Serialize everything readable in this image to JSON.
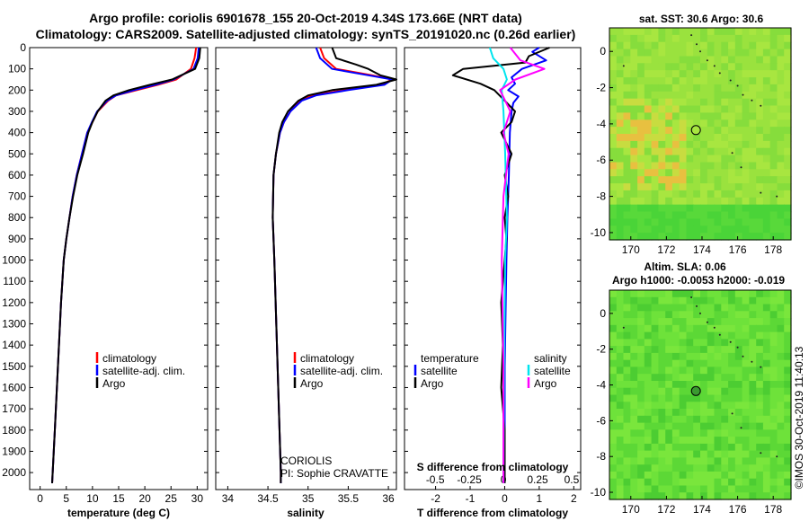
{
  "titles": {
    "line1": "Argo profile: coriolis 6901678_155 20-Oct-2019 4.34S 173.66E (NRT data)",
    "line2": "Climatology: CARS2009. Satellite-adjusted climatology: synTS_20191020.nc (0.26d earlier)"
  },
  "colors": {
    "climatology": "#ff0000",
    "satellite": "#0000ff",
    "argo": "#000000",
    "sat_salinity": "#00e5ee",
    "argo_salinity": "#ff00ff"
  },
  "depth_ticks": [
    "0",
    "100",
    "200",
    "300",
    "400",
    "500",
    "600",
    "700",
    "800",
    "900",
    "1000",
    "1100",
    "1200",
    "1300",
    "1400",
    "1500",
    "1600",
    "1700",
    "1800",
    "1900",
    "2000"
  ],
  "legends": {
    "climatology": "climatology",
    "satellite_adj": "satellite-adj. clim.",
    "argo": "Argo",
    "temperature": "temperature",
    "salinity": "salinity",
    "satellite": "satellite"
  },
  "annotations": {
    "agency": "CORIOLIS",
    "pi": "PI: Sophie CRAVATTE"
  },
  "maps": {
    "sst_title": "sat. SST: 30.6 Argo: 30.6",
    "sla_title1": "Altim. SLA: 0.06",
    "sla_title2": "Argo h1000: -0.0053 h2000: -0.019",
    "x_ticks": [
      "170",
      "172",
      "174",
      "176",
      "178"
    ],
    "y_ticks": [
      "0",
      "-2",
      "-4",
      "-6",
      "-8",
      "-10"
    ],
    "marker": {
      "lon": 173.66,
      "lat": -4.34
    }
  },
  "credit": "©IMOS 30-Oct-2019 11:40:13",
  "chart_data": [
    {
      "type": "line",
      "title": "",
      "xlabel": "temperature (deg C)",
      "ylabel": "depth",
      "xlim": [
        -2,
        32
      ],
      "ylim": [
        2080,
        0
      ],
      "x_ticks": [
        "0",
        "5",
        "10",
        "15",
        "20",
        "25",
        "30"
      ],
      "series": [
        {
          "name": "climatology",
          "color": "#ff0000",
          "depth": [
            0,
            50,
            100,
            150,
            175,
            200,
            225,
            250,
            300,
            350,
            400,
            500,
            600,
            700,
            800,
            900,
            1000,
            1200,
            1400,
            1600,
            1800,
            2000,
            2050
          ],
          "values": [
            29.8,
            29.5,
            28.8,
            26.0,
            22.5,
            18.5,
            14.5,
            13.0,
            11.0,
            10.0,
            9.0,
            8.0,
            7.0,
            6.2,
            5.6,
            5.0,
            4.5,
            4.0,
            3.6,
            3.2,
            2.8,
            2.4,
            2.3
          ]
        },
        {
          "name": "satellite-adj. clim.",
          "color": "#0000ff",
          "depth": [
            0,
            50,
            100,
            150,
            175,
            200,
            225,
            250,
            300,
            350,
            400,
            500,
            600,
            700,
            800,
            900,
            1000,
            1200,
            1400,
            1600,
            1800,
            2000,
            2050
          ],
          "values": [
            30.3,
            30.1,
            29.3,
            25.5,
            22.0,
            18.0,
            14.5,
            12.8,
            10.9,
            9.9,
            9.0,
            8.0,
            7.0,
            6.2,
            5.6,
            5.0,
            4.5,
            4.0,
            3.6,
            3.2,
            2.8,
            2.4,
            2.3
          ]
        },
        {
          "name": "Argo",
          "color": "#000000",
          "depth": [
            0,
            50,
            100,
            150,
            175,
            200,
            225,
            250,
            300,
            350,
            400,
            500,
            600,
            700,
            800,
            900,
            1000,
            1200,
            1400,
            1600,
            1800,
            2000,
            2050
          ],
          "values": [
            30.6,
            30.4,
            29.6,
            25.2,
            21.0,
            17.0,
            14.0,
            12.5,
            11.0,
            10.0,
            9.2,
            8.2,
            7.1,
            6.3,
            5.6,
            5.0,
            4.5,
            4.0,
            3.6,
            3.2,
            2.8,
            2.4,
            2.3
          ]
        }
      ]
    },
    {
      "type": "line",
      "title": "",
      "xlabel": "salinity",
      "ylabel": "depth",
      "xlim": [
        33.85,
        36.1
      ],
      "ylim": [
        2080,
        0
      ],
      "x_ticks": [
        "34",
        "34.5",
        "35",
        "35.5",
        "36"
      ],
      "series": [
        {
          "name": "climatology",
          "color": "#ff0000",
          "depth": [
            0,
            50,
            100,
            130,
            150,
            175,
            200,
            225,
            250,
            300,
            350,
            400,
            500,
            600,
            800,
            1000,
            1500,
            2000,
            2050
          ],
          "values": [
            35.15,
            35.2,
            35.35,
            35.8,
            36.05,
            35.9,
            35.45,
            35.05,
            34.9,
            34.78,
            34.7,
            34.65,
            34.6,
            34.57,
            34.56,
            34.58,
            34.62,
            34.66,
            34.66
          ]
        },
        {
          "name": "satellite-adj. clim.",
          "color": "#0000ff",
          "depth": [
            0,
            50,
            100,
            130,
            150,
            175,
            200,
            225,
            250,
            300,
            350,
            400,
            500,
            600,
            800,
            1000,
            1500,
            2000,
            2050
          ],
          "values": [
            35.1,
            35.15,
            35.3,
            35.75,
            36.05,
            35.95,
            35.5,
            35.1,
            34.92,
            34.78,
            34.7,
            34.65,
            34.6,
            34.57,
            34.56,
            34.58,
            34.62,
            34.66,
            34.66
          ]
        },
        {
          "name": "Argo",
          "color": "#000000",
          "depth": [
            0,
            50,
            80,
            100,
            130,
            150,
            175,
            200,
            225,
            250,
            300,
            350,
            400,
            500,
            600,
            800,
            1000,
            1500,
            2000,
            2050
          ],
          "values": [
            35.3,
            35.35,
            35.6,
            35.75,
            35.9,
            36.1,
            35.85,
            35.3,
            35.0,
            34.88,
            34.75,
            34.68,
            34.64,
            34.6,
            34.57,
            34.56,
            34.58,
            34.62,
            34.66,
            34.66
          ]
        }
      ]
    },
    {
      "type": "line",
      "title": "",
      "xlabel": "T difference from climatology",
      "x2label": "S difference from climatology",
      "ylabel": "depth",
      "xlim": [
        -2.9,
        2.2
      ],
      "ylim": [
        2080,
        0
      ],
      "x_ticks": [
        "-2",
        "-1",
        "0",
        "1",
        "2"
      ],
      "x2_ticks": [
        "-0.5",
        "-0.25",
        "0",
        "0.25",
        "0.5"
      ],
      "series": [
        {
          "name": "temperature satellite",
          "color": "#0000ff",
          "depth": [
            0,
            20,
            60,
            100,
            140,
            170,
            200,
            230,
            260,
            300,
            400,
            600,
            800,
            1000,
            1500,
            2000,
            2050
          ],
          "values": [
            1.0,
            0.8,
            1.2,
            0.5,
            0.2,
            0.3,
            0.1,
            0.4,
            0.25,
            0.2,
            0.15,
            0.12,
            0.08,
            0.05,
            0.0,
            0.0,
            0.0
          ]
        },
        {
          "name": "temperature Argo",
          "color": "#000000",
          "depth": [
            0,
            40,
            70,
            100,
            130,
            170,
            200,
            250,
            300,
            350,
            400,
            500,
            600,
            700,
            800,
            900,
            1000,
            1200,
            1400,
            1600,
            1800,
            2000,
            2050
          ],
          "values": [
            1.3,
            0.7,
            0.6,
            -1.2,
            -1.5,
            -0.7,
            -0.3,
            0.0,
            0.3,
            0.2,
            -0.1,
            0.2,
            0.0,
            0.1,
            0.0,
            0.05,
            0.0,
            -0.1,
            -0.05,
            -0.1,
            0.0,
            0.0,
            0.0
          ]
        },
        {
          "name": "salinity satellite",
          "color": "#00e5ee",
          "depth": [
            0,
            50,
            100,
            150,
            200,
            300,
            500,
            800,
            1000,
            1500,
            2000,
            2050
          ],
          "values": [
            -0.4,
            -0.3,
            0.0,
            0.1,
            -0.05,
            0.0,
            0.05,
            0.1,
            0.05,
            0.02,
            0.0,
            0.0
          ]
        },
        {
          "name": "salinity Argo",
          "color": "#ff00ff",
          "depth": [
            0,
            60,
            100,
            150,
            200,
            300,
            400,
            500,
            700,
            1000,
            1500,
            2000,
            2050
          ],
          "values": [
            0.2,
            0.5,
            1.2,
            0.35,
            -0.1,
            0.2,
            0.0,
            0.15,
            0.0,
            -0.05,
            0.0,
            0.0,
            0.0
          ]
        }
      ]
    }
  ]
}
